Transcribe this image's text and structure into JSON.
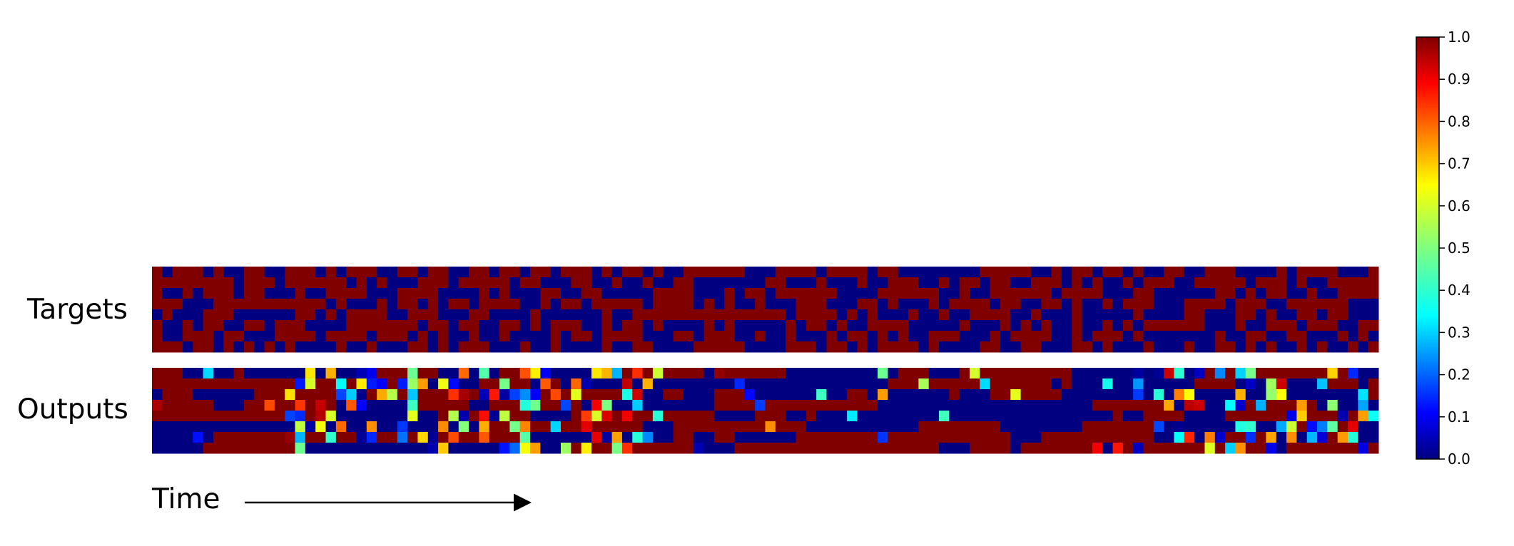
{
  "labels": {
    "targets": "Targets",
    "outputs": "Outputs",
    "time": "Time"
  },
  "chart_data": {
    "type": "heatmap",
    "colormap": "jet",
    "value_range": [
      0.0,
      1.0
    ],
    "rows_per_panel": 8,
    "time_steps": 120,
    "panels": [
      {
        "name": "Targets",
        "values": "binary 0/1 pattern"
      },
      {
        "name": "Outputs",
        "values": "continuous 0.0–1.0 predictions"
      }
    ],
    "colorbar": {
      "ticks": [
        "0.0",
        "0.1",
        "0.2",
        "0.3",
        "0.4",
        "0.5",
        "0.6",
        "0.7",
        "0.8",
        "0.9",
        "1.0"
      ],
      "colors": [
        "#00007f",
        "#0000ff",
        "#007fff",
        "#00ffff",
        "#7fff7f",
        "#ffff00",
        "#ff7f00",
        "#ff0000",
        "#7f0000"
      ]
    }
  }
}
